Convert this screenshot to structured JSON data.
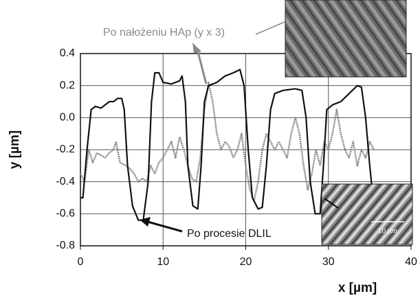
{
  "chart_data": {
    "type": "line",
    "xlabel": "x [µm]",
    "ylabel": "y [µm]",
    "xlim": [
      0,
      40
    ],
    "xticks": [
      0,
      10,
      20,
      30,
      40
    ],
    "ylim": [
      -0.8,
      0.4
    ],
    "yticks": [
      -0.8,
      -0.6,
      -0.4,
      -0.2,
      {
        "value": 0,
        "label": "0.0"
      },
      0.2,
      0.4
    ],
    "grid": true,
    "inset_scale": "10 µm",
    "series": [
      {
        "name": "Po procesie DLIL",
        "color": "#111111",
        "dashed": false,
        "x": [
          0,
          0.3,
          0.8,
          1.3,
          1.8,
          2.5,
          3,
          3.5,
          4,
          4.5,
          5,
          5.3,
          5.7,
          6.3,
          7,
          7.6,
          8.2,
          8.6,
          9,
          9.5,
          10,
          11,
          12,
          12.3,
          12.7,
          13,
          13.6,
          14.2,
          14.6,
          15,
          15.5,
          16.5,
          17.5,
          18.5,
          19.3,
          19.8,
          20.3,
          20.8,
          21.5,
          22,
          22.5,
          23,
          23.5,
          24.5,
          26,
          26.8,
          27.3,
          27.8,
          28.4,
          29,
          29.4,
          29.8,
          30.5,
          31.5,
          32.5,
          33.5,
          34,
          34.5,
          35,
          35.3
        ],
        "values": [
          -0.5,
          -0.5,
          -0.2,
          0.05,
          0.07,
          0.06,
          0.08,
          0.1,
          0.1,
          0.12,
          0.12,
          0.05,
          -0.3,
          -0.55,
          -0.64,
          -0.64,
          -0.4,
          0.1,
          0.28,
          0.28,
          0.22,
          0.21,
          0.23,
          0.26,
          0.1,
          -0.3,
          -0.55,
          -0.57,
          -0.3,
          0.1,
          0.2,
          0.22,
          0.26,
          0.28,
          0.3,
          0.2,
          -0.2,
          -0.5,
          -0.57,
          -0.56,
          -0.3,
          0.05,
          0.15,
          0.17,
          0.18,
          0.17,
          0,
          -0.4,
          -0.6,
          -0.6,
          -0.3,
          0.05,
          0.08,
          0.1,
          0.15,
          0.2,
          0.19,
          0,
          -0.3,
          -0.45
        ]
      },
      {
        "name": "Po nałożeniu HAp (y x 3)",
        "color": "#888888",
        "dashed": true,
        "x": [
          0,
          0.5,
          1,
          1.5,
          2,
          3,
          3.5,
          4,
          4.3,
          4.8,
          5.5,
          6,
          6.5,
          7,
          7.5,
          8,
          8.5,
          9,
          9.5,
          10,
          10.5,
          11,
          11.5,
          12,
          12.5,
          13,
          13.5,
          14,
          14.5,
          15,
          15.5,
          16,
          16.5,
          17,
          17.5,
          18,
          18.5,
          19,
          19.5,
          20,
          20.5,
          21,
          21.5,
          22,
          22.5,
          23,
          23.5,
          24,
          24.5,
          25,
          25.5,
          26,
          26.5,
          27,
          27.5,
          28,
          28.5,
          29,
          29.5,
          30,
          30.5,
          31,
          31.5,
          32,
          32.5,
          33,
          33.5,
          34,
          34.5,
          35,
          35.5
        ],
        "values": [
          -0.35,
          -0.4,
          -0.2,
          -0.28,
          -0.22,
          -0.25,
          -0.22,
          -0.2,
          -0.15,
          -0.28,
          -0.3,
          -0.32,
          -0.35,
          -0.4,
          -0.38,
          -0.4,
          -0.3,
          -0.35,
          -0.28,
          -0.25,
          -0.2,
          -0.15,
          -0.25,
          -0.12,
          -0.2,
          -0.3,
          -0.38,
          -0.4,
          -0.25,
          0.05,
          0.22,
          0.1,
          -0.1,
          -0.2,
          -0.15,
          -0.18,
          -0.25,
          -0.2,
          -0.1,
          -0.3,
          -0.45,
          -0.52,
          -0.4,
          -0.2,
          -0.1,
          -0.15,
          -0.2,
          -0.15,
          -0.2,
          -0.25,
          -0.1,
          0,
          -0.1,
          -0.3,
          -0.45,
          -0.35,
          -0.2,
          -0.3,
          -0.15,
          -0.2,
          -0.1,
          0.05,
          -0.1,
          -0.2,
          -0.25,
          -0.15,
          -0.3,
          -0.2,
          -0.25,
          -0.15,
          -0.2
        ]
      }
    ]
  }
}
